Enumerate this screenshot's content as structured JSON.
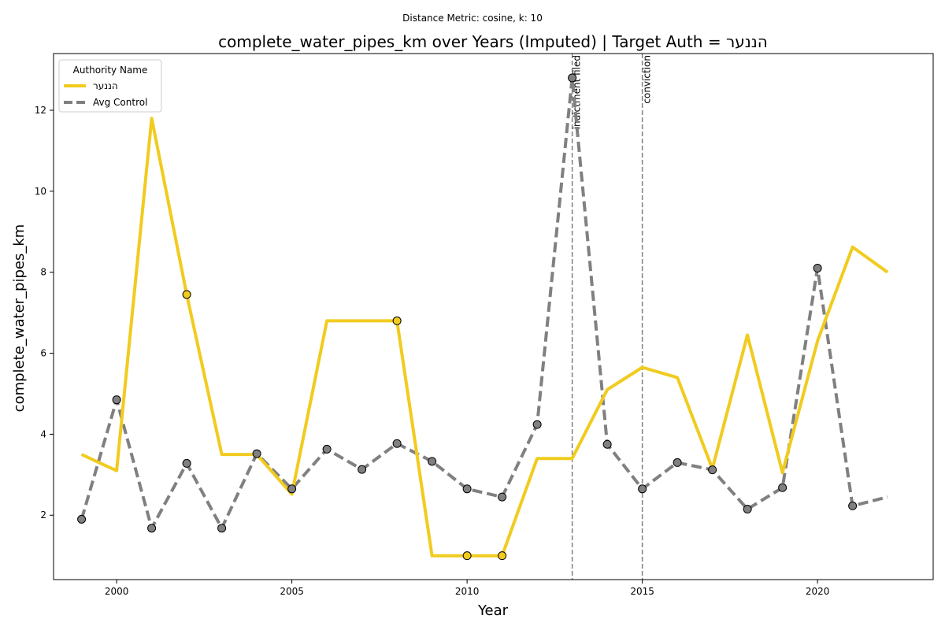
{
  "chart_data": {
    "type": "line",
    "suptitle": "Distance Metric: cosine, k: 10",
    "title": "complete_water_pipes_km over Years (Imputed) | Target Auth = הננער",
    "xlabel": "Year",
    "ylabel": "complete_water_pipes_km",
    "xlim": [
      1998.2,
      2023.3
    ],
    "ylim": [
      0.41,
      13.4
    ],
    "xticks": [
      2000,
      2005,
      2010,
      2015,
      2020
    ],
    "yticks": [
      2,
      4,
      6,
      8,
      10,
      12
    ],
    "legend": {
      "title": "Authority Name",
      "position": "top-left"
    },
    "events": [
      {
        "x": 2013,
        "label": "indictment filed"
      },
      {
        "x": 2015,
        "label": "conviction"
      }
    ],
    "series": [
      {
        "name": "הננער",
        "color": "#f1cb1f",
        "style": "solid",
        "x": [
          1999,
          2000,
          2001,
          2002,
          2003,
          2004,
          2005,
          2006,
          2007,
          2008,
          2009,
          2010,
          2011,
          2012,
          2013,
          2014,
          2015,
          2016,
          2017,
          2018,
          2019,
          2020,
          2021,
          2022
        ],
        "y": [
          3.5,
          3.1,
          11.8,
          7.45,
          3.5,
          3.5,
          2.52,
          6.8,
          6.8,
          6.8,
          1.0,
          1.0,
          1.0,
          3.4,
          3.4,
          5.1,
          5.65,
          5.4,
          3.15,
          6.45,
          3.05,
          6.3,
          8.62,
          8.0
        ],
        "markers_at": [
          2002,
          2008,
          2010,
          2011
        ]
      },
      {
        "name": "Avg Control",
        "color": "#808080",
        "style": "dashed",
        "x": [
          1999,
          2000,
          2001,
          2002,
          2003,
          2004,
          2005,
          2006,
          2007,
          2008,
          2009,
          2010,
          2011,
          2012,
          2013,
          2014,
          2015,
          2016,
          2017,
          2018,
          2019,
          2020,
          2021,
          2022
        ],
        "y": [
          1.9,
          4.85,
          1.68,
          3.28,
          1.68,
          3.52,
          2.65,
          3.63,
          3.13,
          3.77,
          3.33,
          2.65,
          2.45,
          4.24,
          12.8,
          3.75,
          2.65,
          3.3,
          3.12,
          2.15,
          2.68,
          8.1,
          2.23,
          2.45
        ],
        "markers_at": [
          1999,
          2000,
          2001,
          2002,
          2003,
          2004,
          2005,
          2006,
          2007,
          2008,
          2009,
          2010,
          2011,
          2012,
          2013,
          2014,
          2015,
          2016,
          2017,
          2018,
          2019,
          2020,
          2021
        ]
      }
    ]
  }
}
